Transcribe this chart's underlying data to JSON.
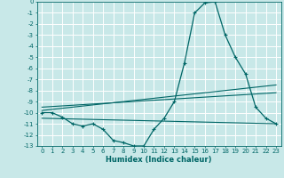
{
  "xlabel": "Humidex (Indice chaleur)",
  "bg_color": "#c8e8e8",
  "grid_color": "#ffffff",
  "line_color": "#006666",
  "xlim": [
    -0.5,
    23.5
  ],
  "ylim": [
    -13,
    0
  ],
  "xticks": [
    0,
    1,
    2,
    3,
    4,
    5,
    6,
    7,
    8,
    9,
    10,
    11,
    12,
    13,
    14,
    15,
    16,
    17,
    18,
    19,
    20,
    21,
    22,
    23
  ],
  "yticks": [
    0,
    -1,
    -2,
    -3,
    -4,
    -5,
    -6,
    -7,
    -8,
    -9,
    -10,
    -11,
    -12,
    -13
  ],
  "curve1_x": [
    0,
    1,
    2,
    3,
    4,
    5,
    6,
    7,
    8,
    9,
    10,
    11,
    12,
    13,
    14,
    15,
    16,
    17,
    18,
    19,
    20,
    21,
    22,
    23
  ],
  "curve1_y": [
    -10,
    -10,
    -10.4,
    -11,
    -11.2,
    -11,
    -11.5,
    -12.5,
    -12.7,
    -13,
    -13,
    -11.5,
    -10.5,
    -9,
    -5.5,
    -1,
    -0.1,
    0,
    -3,
    -5,
    -6.5,
    -9.5,
    -10.5,
    -11
  ],
  "line2_x": [
    0,
    23
  ],
  "line2_y": [
    -10.5,
    -11
  ],
  "line3_x": [
    0,
    23
  ],
  "line3_y": [
    -9.8,
    -7.5
  ],
  "line4_x": [
    0,
    23
  ],
  "line4_y": [
    -9.5,
    -8.2
  ],
  "tick_fontsize": 5.0,
  "xlabel_fontsize": 6.0
}
